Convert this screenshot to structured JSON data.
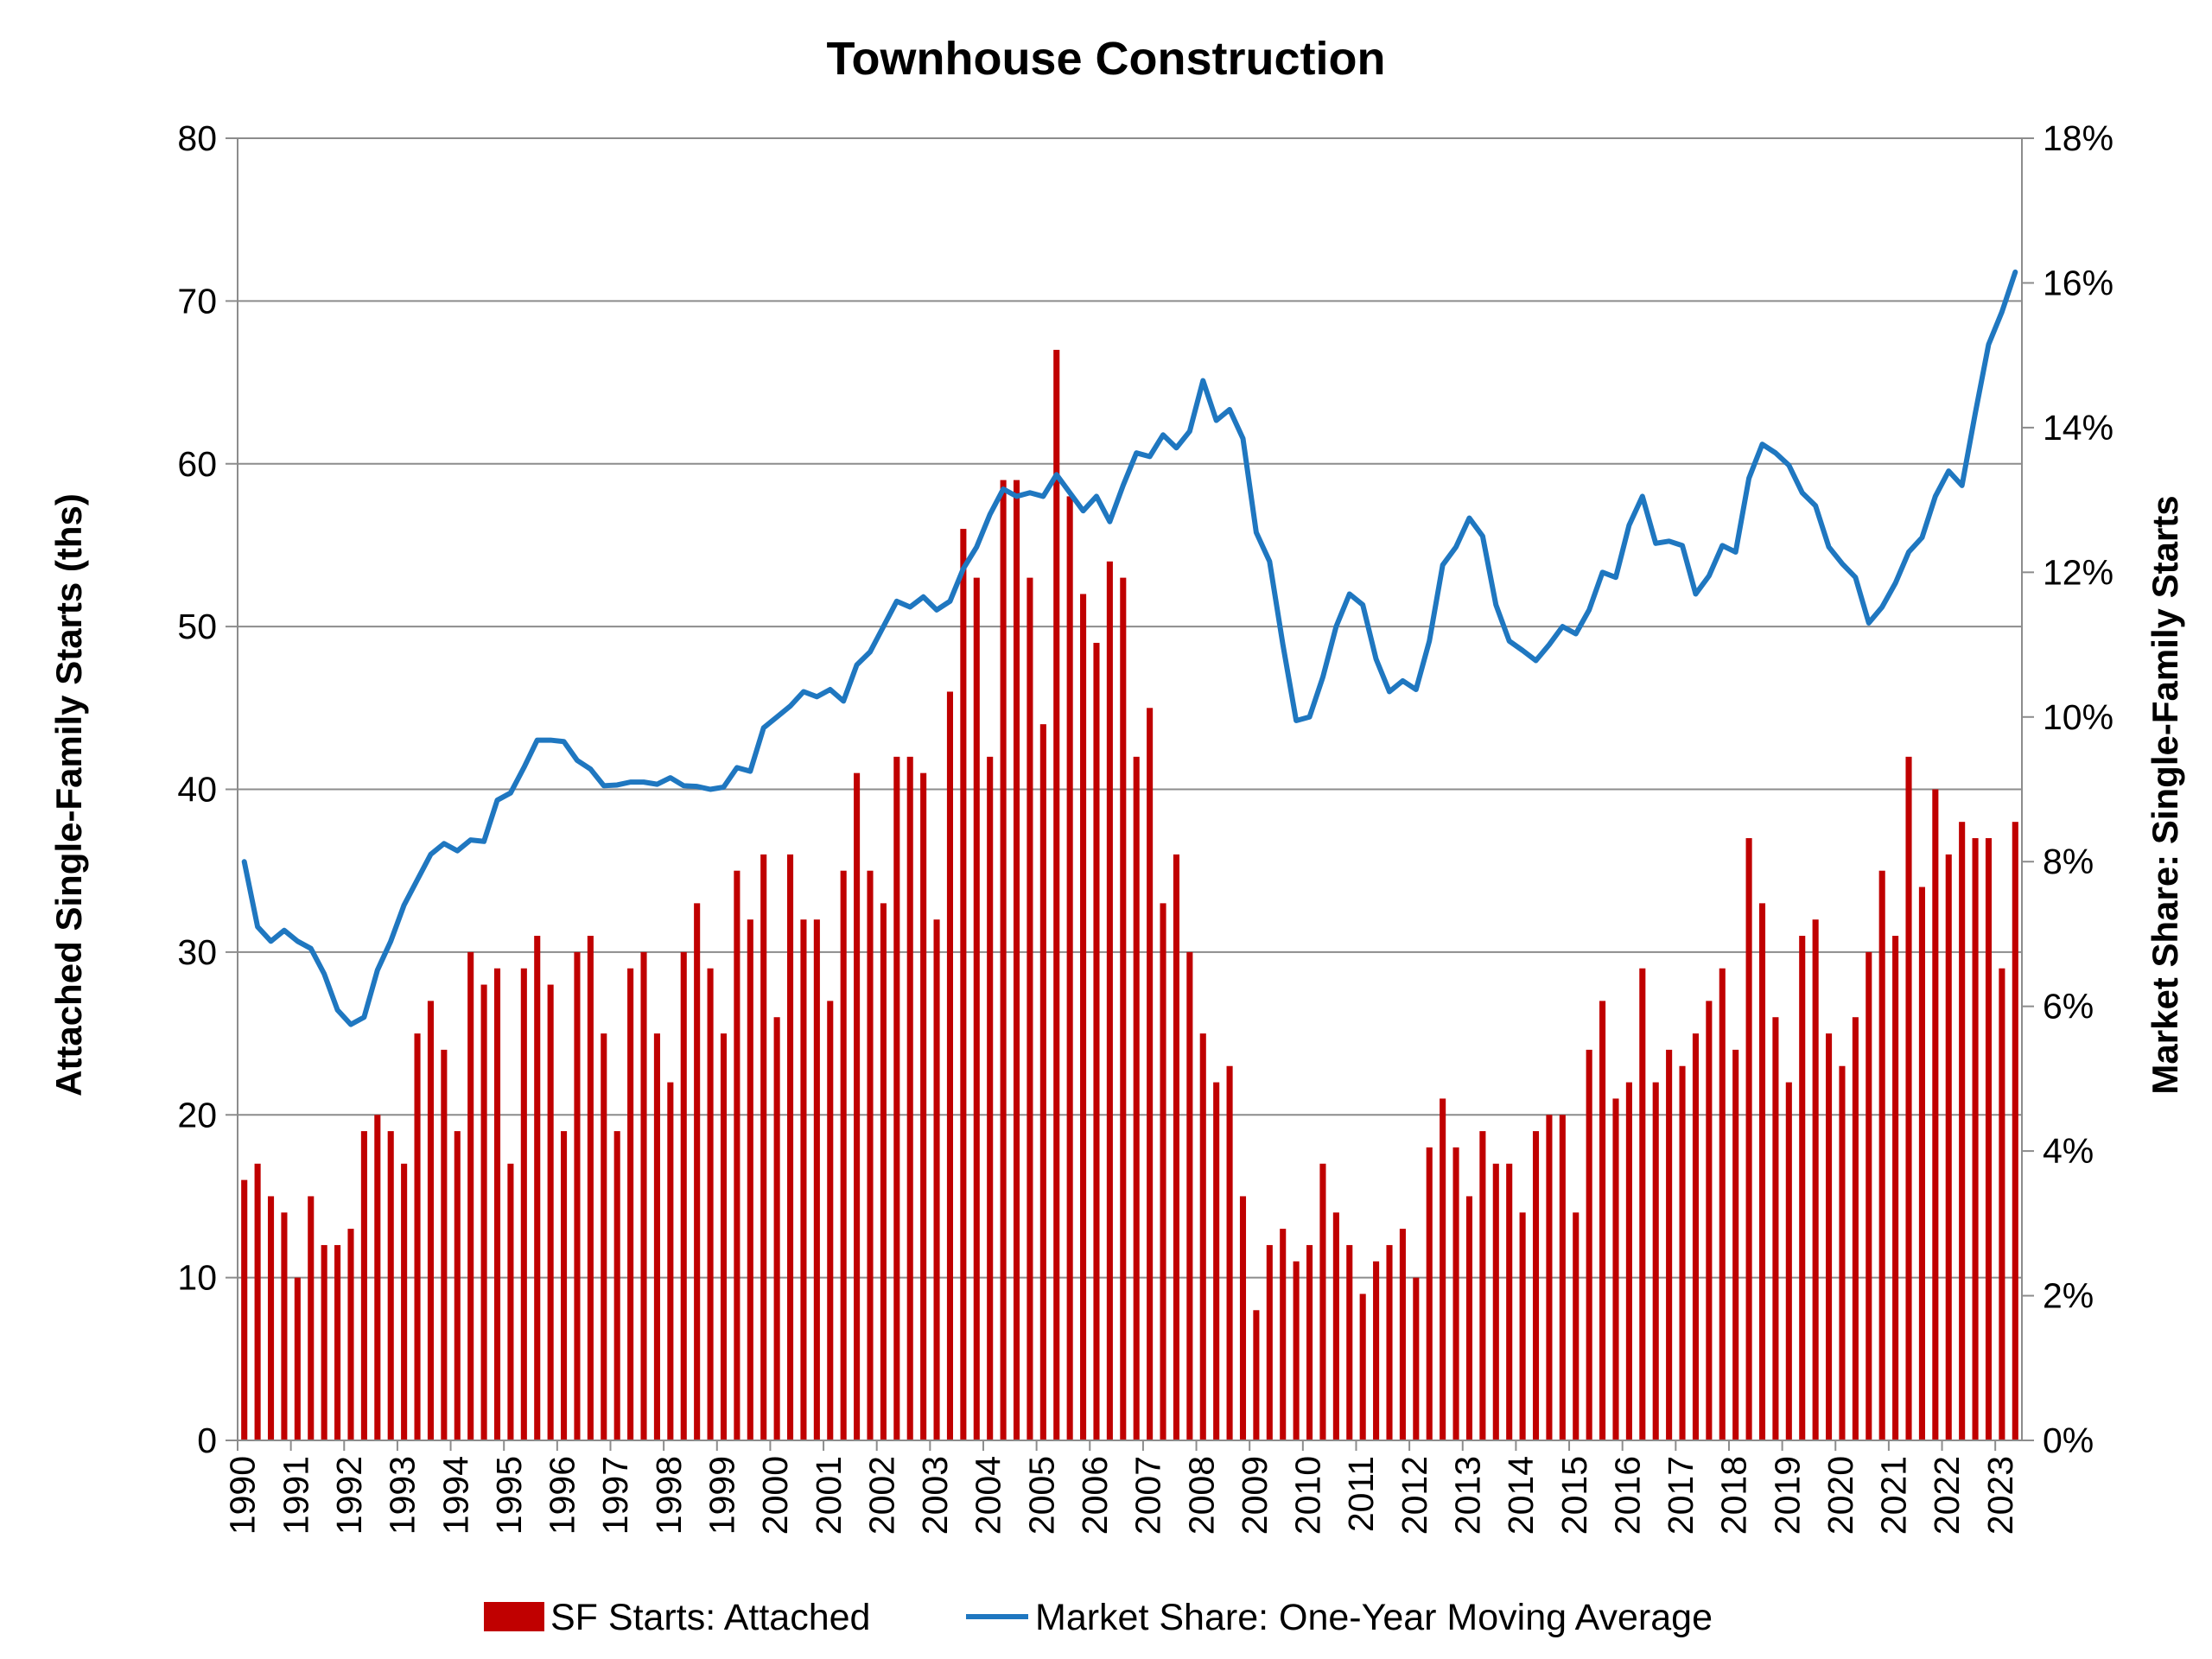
{
  "chart_data": {
    "type": "bar",
    "title": "Townhouse Construction",
    "ylabel": "Attached Single-Family Starts (ths)",
    "y2label": "Market Share: Single-Family Starts",
    "ylim": [
      0,
      80
    ],
    "y2lim": [
      0,
      18
    ],
    "yticks": [
      "0",
      "10",
      "20",
      "30",
      "40",
      "50",
      "60",
      "70",
      "80"
    ],
    "y2ticks": [
      "0%",
      "2%",
      "4%",
      "6%",
      "8%",
      "10%",
      "12%",
      "14%",
      "16%",
      "18%"
    ],
    "xticks": [
      "1990",
      "1991",
      "1992",
      "1993",
      "1994",
      "1995",
      "1996",
      "1997",
      "1998",
      "1999",
      "2000",
      "2001",
      "2002",
      "2003",
      "2004",
      "2005",
      "2006",
      "2007",
      "2008",
      "2009",
      "2010",
      "2011",
      "2012",
      "2013",
      "2014",
      "2015",
      "2016",
      "2017",
      "2018",
      "2019",
      "2020",
      "2021",
      "2022",
      "2023"
    ],
    "grid": true,
    "legend_position": "bottom",
    "colors": {
      "bars": "#c00000",
      "line": "#1f77c0",
      "grid": "#8c8c8c"
    },
    "series": [
      {
        "name": "SF Starts: Attached",
        "type": "bar",
        "axis": "left",
        "values": [
          16,
          17,
          15,
          14,
          10,
          15,
          12,
          12,
          13,
          19,
          20,
          19,
          17,
          25,
          27,
          24,
          19,
          30,
          28,
          29,
          17,
          29,
          31,
          28,
          19,
          30,
          31,
          25,
          19,
          29,
          30,
          25,
          22,
          30,
          33,
          29,
          25,
          35,
          32,
          36,
          26,
          36,
          32,
          32,
          27,
          35,
          41,
          35,
          33,
          42,
          42,
          41,
          32,
          46,
          56,
          53,
          42,
          59,
          59,
          53,
          44,
          67,
          58,
          52,
          49,
          54,
          53,
          42,
          45,
          33,
          36,
          30,
          25,
          22,
          23,
          15,
          8,
          12,
          13,
          11,
          12,
          17,
          14,
          12,
          9,
          11,
          12,
          13,
          10,
          18,
          21,
          18,
          15,
          19,
          17,
          17,
          14,
          19,
          20,
          20,
          14,
          24,
          27,
          21,
          22,
          29,
          22,
          24,
          23,
          25,
          27,
          29,
          24,
          37,
          33,
          26,
          22,
          31,
          32,
          25,
          23,
          26,
          30,
          35,
          31,
          42,
          34,
          40,
          36,
          38,
          37,
          37,
          29,
          38
        ]
      },
      {
        "name": "Market Share: One-Year Moving Average",
        "type": "line",
        "axis": "right",
        "values": [
          8.0,
          7.1,
          6.9,
          7.05,
          6.9,
          6.8,
          6.45,
          5.95,
          5.75,
          5.85,
          6.5,
          6.9,
          7.4,
          7.75,
          8.1,
          8.25,
          8.15,
          8.3,
          8.28,
          8.85,
          8.95,
          9.3,
          9.68,
          9.68,
          9.66,
          9.4,
          9.28,
          9.05,
          9.06,
          9.1,
          9.1,
          9.07,
          9.16,
          9.05,
          9.04,
          9.0,
          9.03,
          9.3,
          9.25,
          9.85,
          10.0,
          10.15,
          10.35,
          10.28,
          10.38,
          10.22,
          10.72,
          10.9,
          11.25,
          11.6,
          11.52,
          11.66,
          11.48,
          11.6,
          12.05,
          12.35,
          12.8,
          13.15,
          13.05,
          13.1,
          13.05,
          13.35,
          13.1,
          12.85,
          13.05,
          12.7,
          13.2,
          13.65,
          13.6,
          13.9,
          13.72,
          13.95,
          14.65,
          14.1,
          14.25,
          13.85,
          12.55,
          12.15,
          11.0,
          9.95,
          10.0,
          10.55,
          11.25,
          11.7,
          11.55,
          10.8,
          10.35,
          10.5,
          10.38,
          11.05,
          12.1,
          12.35,
          12.75,
          12.5,
          11.55,
          11.05,
          10.92,
          10.78,
          11.0,
          11.25,
          11.15,
          11.48,
          12.0,
          11.93,
          12.65,
          13.05,
          12.4,
          12.43,
          12.37,
          11.7,
          11.95,
          12.37,
          12.28,
          13.3,
          13.77,
          13.65,
          13.48,
          13.1,
          12.92,
          12.35,
          12.12,
          11.93,
          11.3,
          11.52,
          11.85,
          12.28,
          12.48,
          13.05,
          13.4,
          13.2,
          14.2,
          15.15,
          15.6,
          16.15
        ]
      }
    ]
  }
}
